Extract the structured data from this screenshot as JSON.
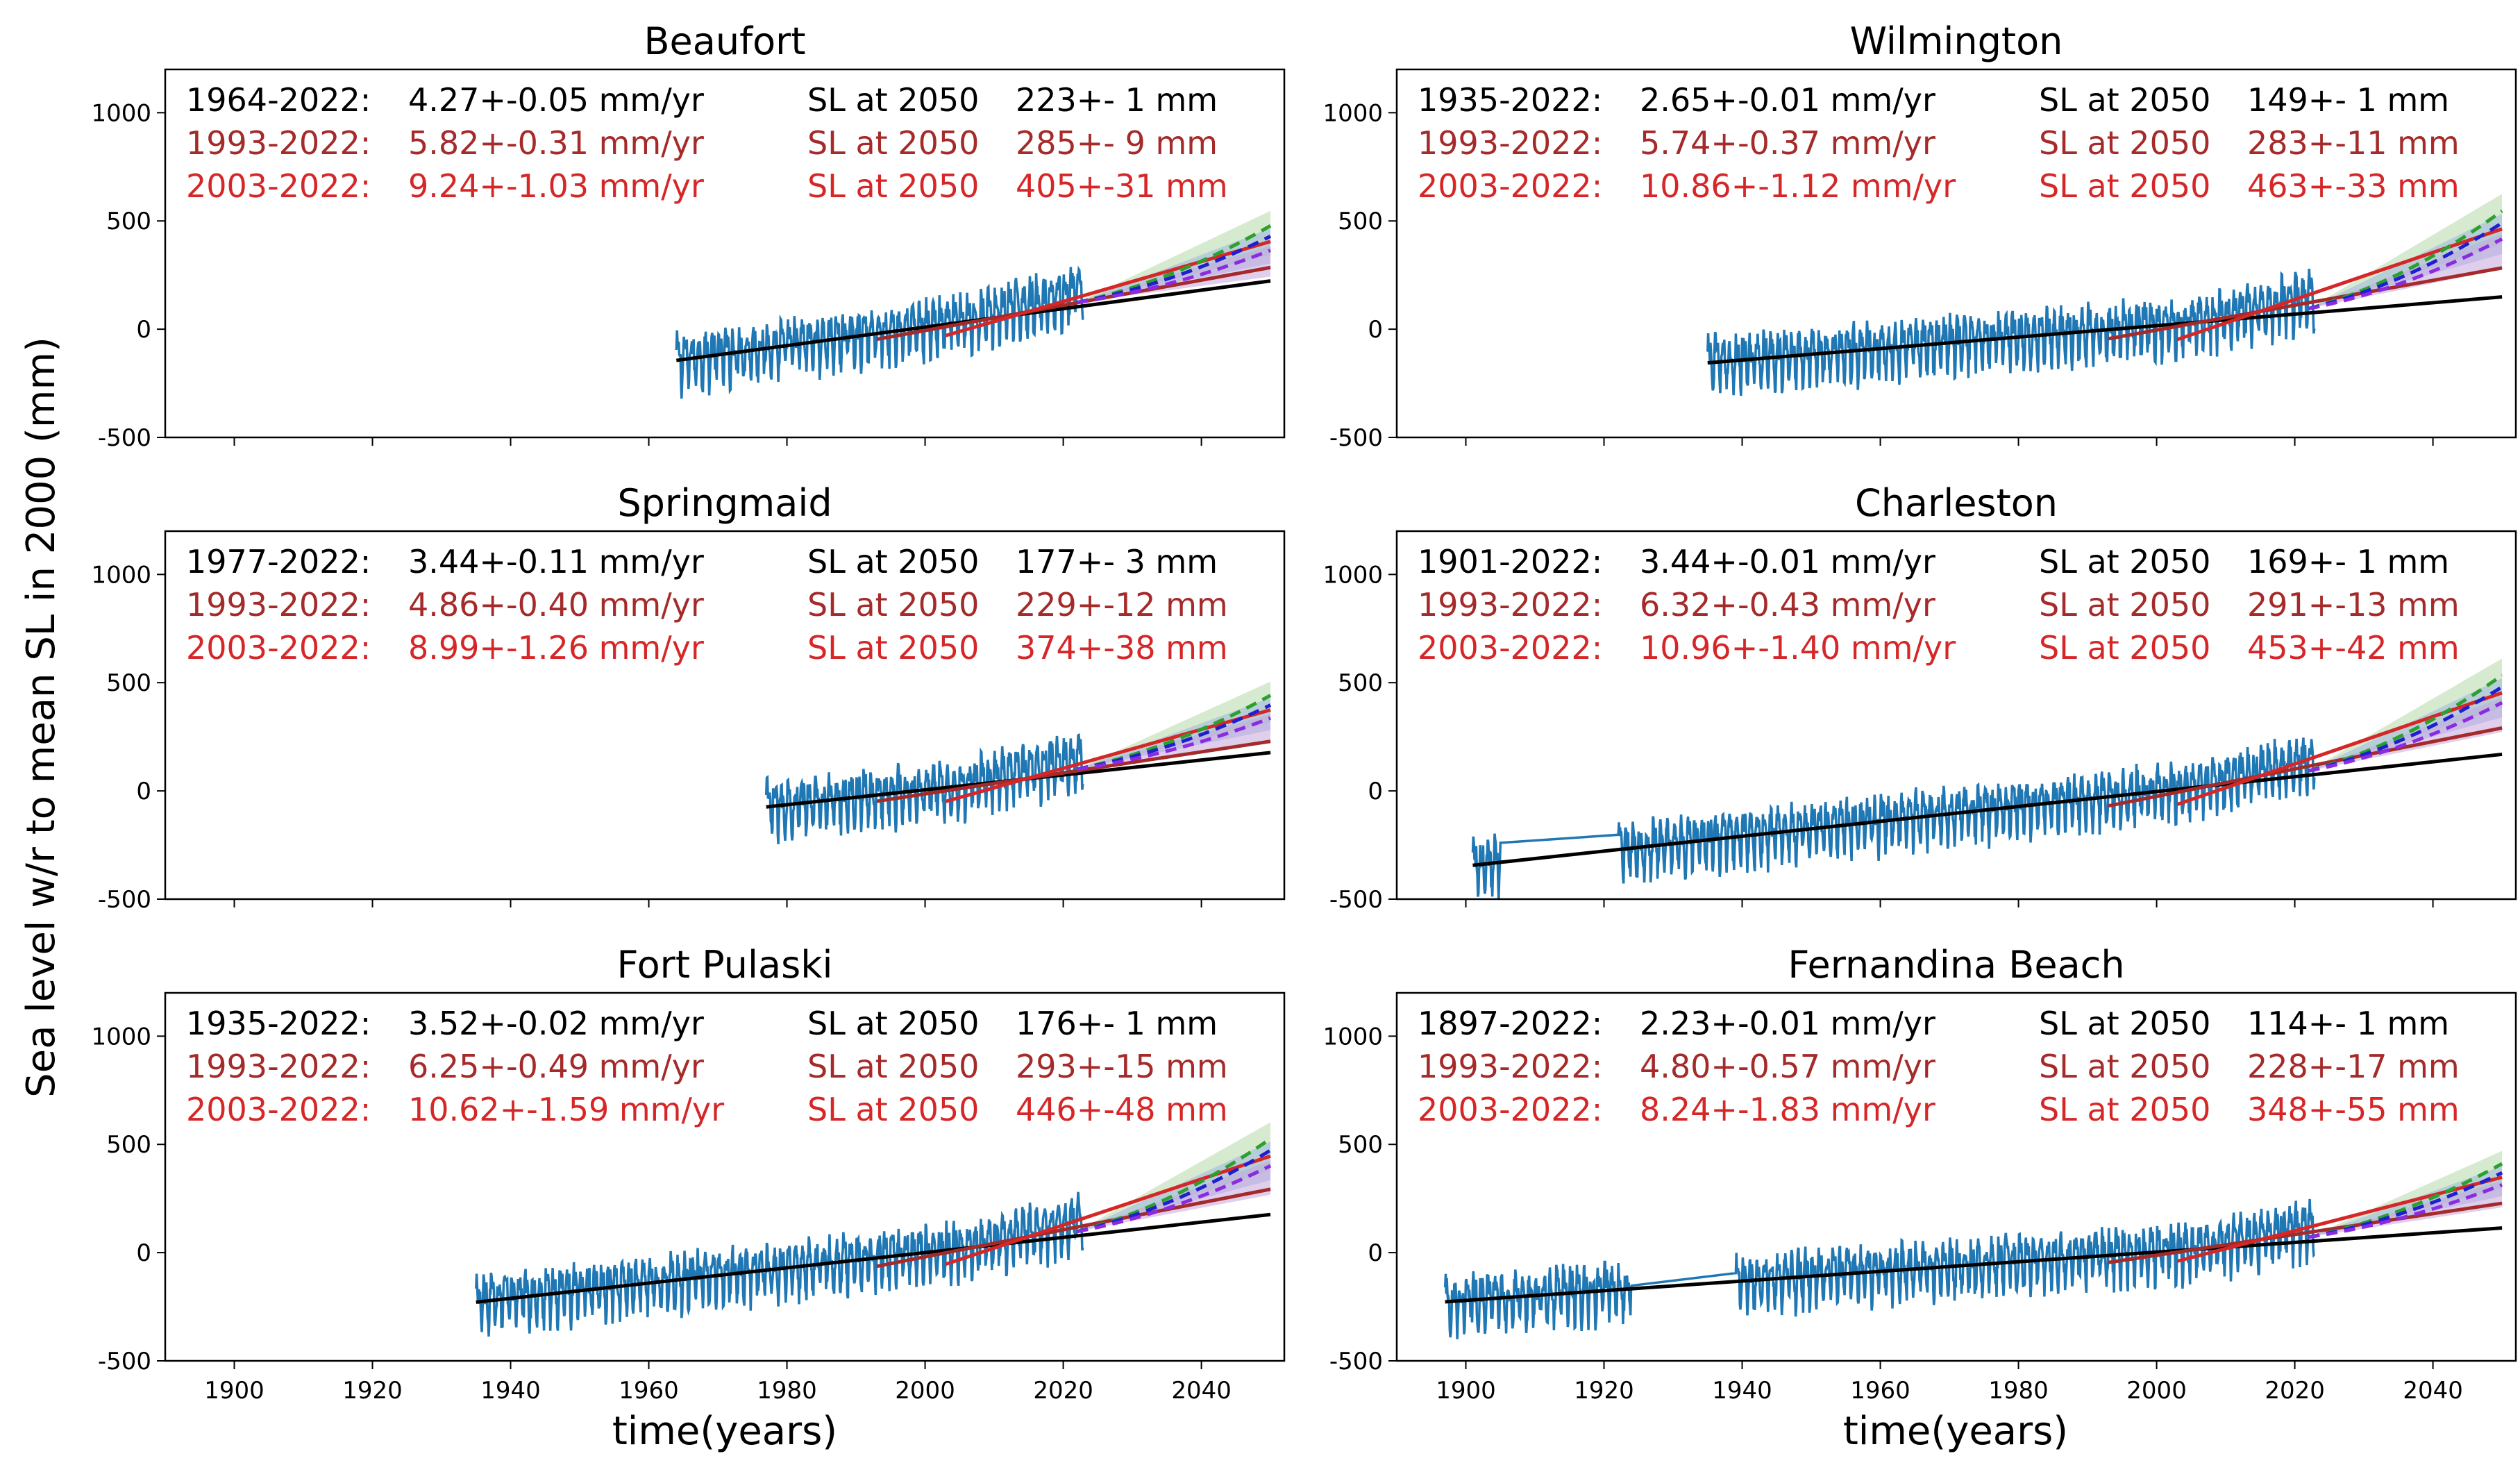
{
  "figure": {
    "ylabel": "Sea level w/r to mean SL in 2000 (mm)",
    "xlabel": "time(years)"
  },
  "colors": {
    "observed": "#1f77b4",
    "fit_full": "#000000",
    "fit_1993": "#a52a2a",
    "fit_2003": "#d62728",
    "proj_green": "#2ca02c",
    "proj_blue": "#1f1fd0",
    "proj_purple": "#8a2be2",
    "band_green": "#b5d8a8",
    "band_blue": "#9fb4e0",
    "band_purple": "#c4a8dc"
  },
  "chart_data": [
    {
      "type": "line",
      "title": "Beaufort",
      "xlim": [
        1890,
        2052
      ],
      "ylim": [
        -500,
        1200
      ],
      "xticks": [
        1900,
        1920,
        1940,
        1960,
        1980,
        2000,
        2020,
        2040
      ],
      "yticks": [
        -500,
        0,
        500,
        1000
      ],
      "record_start": 1964,
      "gaps": [],
      "trends": [
        {
          "period": "1964-2022:",
          "rate": "4.27+-0.05 mm/yr",
          "sl_label": "SL at 2050",
          "sl_value": "223+- 1 mm",
          "style": "full"
        },
        {
          "period": "1993-2022:",
          "rate": "5.82+-0.31 mm/yr",
          "sl_label": "SL at 2050",
          "sl_value": "285+- 9 mm",
          "style": "1993"
        },
        {
          "period": "2003-2022:",
          "rate": "9.24+-1.03 mm/yr",
          "sl_label": "SL at 2050",
          "sl_value": "405+-31 mm",
          "style": "2003"
        }
      ]
    },
    {
      "type": "line",
      "title": "Wilmington",
      "xlim": [
        1890,
        2052
      ],
      "ylim": [
        -500,
        1200
      ],
      "xticks": [
        1900,
        1920,
        1940,
        1960,
        1980,
        2000,
        2020,
        2040
      ],
      "yticks": [
        -500,
        0,
        500,
        1000
      ],
      "record_start": 1935,
      "gaps": [],
      "trends": [
        {
          "period": "1935-2022:",
          "rate": "2.65+-0.01 mm/yr",
          "sl_label": "SL at 2050",
          "sl_value": "149+- 1 mm",
          "style": "full"
        },
        {
          "period": "1993-2022:",
          "rate": "5.74+-0.37 mm/yr",
          "sl_label": "SL at 2050",
          "sl_value": "283+-11 mm",
          "style": "1993"
        },
        {
          "period": "2003-2022:",
          "rate": "10.86+-1.12 mm/yr",
          "sl_label": "SL at 2050",
          "sl_value": "463+-33 mm",
          "style": "2003"
        }
      ]
    },
    {
      "type": "line",
      "title": "Springmaid",
      "xlim": [
        1890,
        2052
      ],
      "ylim": [
        -500,
        1200
      ],
      "xticks": [
        1900,
        1920,
        1940,
        1960,
        1980,
        2000,
        2020,
        2040
      ],
      "yticks": [
        -500,
        0,
        500,
        1000
      ],
      "record_start": 1977,
      "gaps": [],
      "trends": [
        {
          "period": "1977-2022:",
          "rate": "3.44+-0.11 mm/yr",
          "sl_label": "SL at 2050",
          "sl_value": "177+- 3 mm",
          "style": "full"
        },
        {
          "period": "1993-2022:",
          "rate": "4.86+-0.40 mm/yr",
          "sl_label": "SL at 2050",
          "sl_value": "229+-12 mm",
          "style": "1993"
        },
        {
          "period": "2003-2022:",
          "rate": "8.99+-1.26 mm/yr",
          "sl_label": "SL at 2050",
          "sl_value": "374+-38 mm",
          "style": "2003"
        }
      ]
    },
    {
      "type": "line",
      "title": "Charleston",
      "xlim": [
        1890,
        2052
      ],
      "ylim": [
        -500,
        1200
      ],
      "xticks": [
        1900,
        1920,
        1940,
        1960,
        1980,
        2000,
        2020,
        2040
      ],
      "yticks": [
        -500,
        0,
        500,
        1000
      ],
      "record_start": 1901,
      "gaps": [
        [
          1905,
          1922
        ]
      ],
      "trends": [
        {
          "period": "1901-2022:",
          "rate": "3.44+-0.01 mm/yr",
          "sl_label": "SL at 2050",
          "sl_value": "169+- 1 mm",
          "style": "full"
        },
        {
          "period": "1993-2022:",
          "rate": "6.32+-0.43 mm/yr",
          "sl_label": "SL at 2050",
          "sl_value": "291+-13 mm",
          "style": "1993"
        },
        {
          "period": "2003-2022:",
          "rate": "10.96+-1.40 mm/yr",
          "sl_label": "SL at 2050",
          "sl_value": "453+-42 mm",
          "style": "2003"
        }
      ]
    },
    {
      "type": "line",
      "title": "Fort Pulaski",
      "xlim": [
        1890,
        2052
      ],
      "ylim": [
        -500,
        1200
      ],
      "xticks": [
        1900,
        1920,
        1940,
        1960,
        1980,
        2000,
        2020,
        2040
      ],
      "yticks": [
        -500,
        0,
        500,
        1000
      ],
      "record_start": 1935,
      "gaps": [],
      "trends": [
        {
          "period": "1935-2022:",
          "rate": "3.52+-0.02 mm/yr",
          "sl_label": "SL at 2050",
          "sl_value": "176+- 1 mm",
          "style": "full"
        },
        {
          "period": "1993-2022:",
          "rate": "6.25+-0.49 mm/yr",
          "sl_label": "SL at 2050",
          "sl_value": "293+-15 mm",
          "style": "1993"
        },
        {
          "period": "2003-2022:",
          "rate": "10.62+-1.59 mm/yr",
          "sl_label": "SL at 2050",
          "sl_value": "446+-48 mm",
          "style": "2003"
        }
      ]
    },
    {
      "type": "line",
      "title": "Fernandina Beach",
      "xlim": [
        1890,
        2052
      ],
      "ylim": [
        -500,
        1200
      ],
      "xticks": [
        1900,
        1920,
        1940,
        1960,
        1980,
        2000,
        2020,
        2040
      ],
      "yticks": [
        -500,
        0,
        500,
        1000
      ],
      "record_start": 1897,
      "gaps": [
        [
          1924,
          1939
        ]
      ],
      "trends": [
        {
          "period": "1897-2022:",
          "rate": "2.23+-0.01 mm/yr",
          "sl_label": "SL at 2050",
          "sl_value": "114+- 1 mm",
          "style": "full"
        },
        {
          "period": "1993-2022:",
          "rate": "4.80+-0.57 mm/yr",
          "sl_label": "SL at 2050",
          "sl_value": "228+-17 mm",
          "style": "1993"
        },
        {
          "period": "2003-2022:",
          "rate": "8.24+-1.83 mm/yr",
          "sl_label": "SL at 2050",
          "sl_value": "348+-55 mm",
          "style": "2003"
        }
      ]
    }
  ]
}
